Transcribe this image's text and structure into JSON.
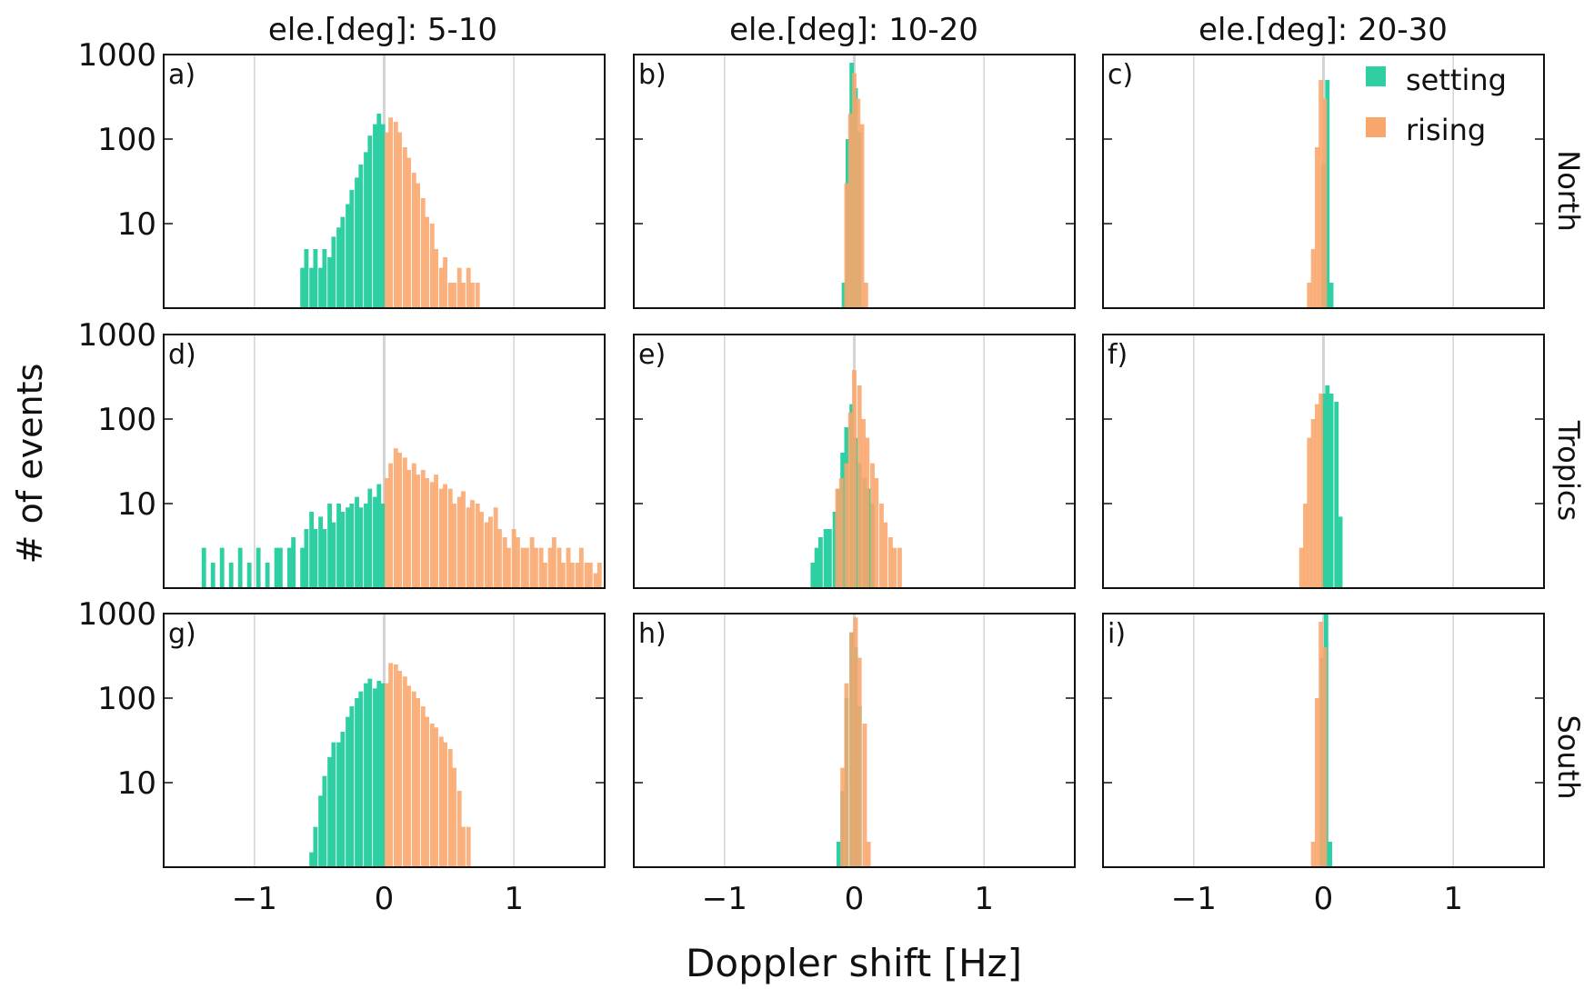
{
  "figure": {
    "ylabel": "# of events",
    "xlabel": "Doppler shift [Hz]",
    "col_titles": [
      "ele.[deg]: 5-10",
      "ele.[deg]: 10-20",
      "ele.[deg]: 20-30"
    ],
    "row_titles": [
      "North",
      "Tropics",
      "South"
    ],
    "legend": [
      {
        "label": "setting",
        "color": "#2ecfa2"
      },
      {
        "label": "rising",
        "color": "#f9a66c"
      }
    ],
    "xticks": [
      "−1",
      "0",
      "1"
    ],
    "yticks": [
      "10",
      "100",
      "1000"
    ]
  },
  "chart_data": {
    "type": "bar",
    "yscale": "log",
    "xlim": [
      -1.7,
      1.7
    ],
    "ylim": [
      1,
      1000
    ],
    "bin_width": 0.034,
    "grid": "vertical",
    "legend_position": "top-right of panel c",
    "panels": [
      {
        "label": "a)",
        "row": 0,
        "col": 0,
        "series": [
          {
            "name": "setting",
            "color": "#2ecfa2",
            "x": [
              -0.63,
              -0.6,
              -0.56,
              -0.53,
              -0.49,
              -0.46,
              -0.42,
              -0.39,
              -0.35,
              -0.32,
              -0.28,
              -0.25,
              -0.21,
              -0.18,
              -0.14,
              -0.11,
              -0.07,
              -0.04,
              -0.01
            ],
            "values": [
              3,
              5,
              3,
              5,
              3,
              5,
              4,
              7,
              9,
              12,
              17,
              25,
              35,
              50,
              70,
              110,
              150,
              200,
              150
            ]
          },
          {
            "name": "rising",
            "color": "#f9a66c",
            "x": [
              0.02,
              0.05,
              0.09,
              0.12,
              0.16,
              0.19,
              0.23,
              0.26,
              0.3,
              0.33,
              0.37,
              0.4,
              0.44,
              0.47,
              0.51,
              0.54,
              0.58,
              0.61,
              0.65,
              0.68,
              0.72
            ],
            "values": [
              120,
              180,
              160,
              120,
              80,
              60,
              40,
              30,
              20,
              12,
              10,
              5,
              3,
              4,
              2,
              2,
              3,
              2,
              3,
              2,
              2
            ]
          }
        ]
      },
      {
        "label": "b)",
        "row": 0,
        "col": 1,
        "series": [
          {
            "name": "setting",
            "color": "#2ecfa2",
            "x": [
              -0.08,
              -0.05,
              -0.02,
              0.01,
              0.04
            ],
            "values": [
              2,
              100,
              800,
              400,
              120
            ]
          },
          {
            "name": "rising",
            "color": "#f9a66c",
            "x": [
              -0.06,
              -0.03,
              0.0,
              0.03,
              0.06,
              0.09
            ],
            "values": [
              30,
              200,
              600,
              300,
              150,
              2
            ]
          }
        ]
      },
      {
        "label": "c)",
        "row": 0,
        "col": 2,
        "series": [
          {
            "name": "setting",
            "color": "#2ecfa2",
            "x": [
              0.0,
              0.03,
              0.06
            ],
            "values": [
              50,
              500,
              2
            ]
          },
          {
            "name": "rising",
            "color": "#f9a66c",
            "x": [
              -0.11,
              -0.08,
              -0.05,
              -0.02,
              0.01
            ],
            "values": [
              2,
              5,
              80,
              500,
              300
            ]
          }
        ]
      },
      {
        "label": "d)",
        "row": 1,
        "col": 0,
        "series": [
          {
            "name": "setting",
            "color": "#2ecfa2",
            "x": [
              -1.39,
              -1.32,
              -1.25,
              -1.18,
              -1.11,
              -1.04,
              -0.97,
              -0.9,
              -0.83,
              -0.8,
              -0.73,
              -0.7,
              -0.63,
              -0.6,
              -0.56,
              -0.53,
              -0.49,
              -0.46,
              -0.42,
              -0.39,
              -0.35,
              -0.32,
              -0.28,
              -0.25,
              -0.21,
              -0.18,
              -0.14,
              -0.11,
              -0.07,
              -0.04,
              -0.01
            ],
            "values": [
              3,
              2,
              3,
              2,
              3,
              2,
              3,
              2,
              3,
              3,
              3,
              4,
              3,
              5,
              8,
              5,
              7,
              5,
              10,
              6,
              10,
              8,
              9,
              10,
              12,
              9,
              10,
              15,
              12,
              17,
              10
            ]
          },
          {
            "name": "rising",
            "color": "#f9a66c",
            "x": [
              0.02,
              0.05,
              0.09,
              0.12,
              0.16,
              0.19,
              0.23,
              0.26,
              0.3,
              0.33,
              0.37,
              0.4,
              0.44,
              0.47,
              0.51,
              0.54,
              0.58,
              0.61,
              0.65,
              0.68,
              0.72,
              0.75,
              0.79,
              0.82,
              0.86,
              0.89,
              0.93,
              0.96,
              1.0,
              1.03,
              1.07,
              1.1,
              1.14,
              1.17,
              1.21,
              1.24,
              1.28,
              1.31,
              1.35,
              1.38,
              1.42,
              1.45,
              1.49,
              1.52,
              1.56,
              1.59,
              1.63,
              1.66
            ],
            "values": [
              20,
              30,
              45,
              40,
              35,
              25,
              30,
              22,
              25,
              20,
              18,
              22,
              15,
              17,
              15,
              10,
              12,
              14,
              9,
              11,
              10,
              8,
              6,
              7,
              9,
              5,
              4,
              3,
              5,
              4,
              3,
              3,
              4,
              3,
              3,
              2,
              3,
              4,
              3,
              2,
              3,
              2,
              2,
              3,
              2,
              2,
              1.5,
              2
            ]
          }
        ]
      },
      {
        "label": "e)",
        "row": 1,
        "col": 1,
        "series": [
          {
            "name": "setting",
            "color": "#2ecfa2",
            "x": [
              -0.32,
              -0.29,
              -0.26,
              -0.22,
              -0.19,
              -0.15,
              -0.12,
              -0.09,
              -0.06,
              -0.02,
              0.01,
              0.04,
              0.08,
              0.11,
              0.14
            ],
            "values": [
              2,
              3,
              4,
              5,
              5,
              8,
              15,
              40,
              80,
              150,
              60,
              30,
              20,
              15,
              10
            ]
          },
          {
            "name": "rising",
            "color": "#f9a66c",
            "x": [
              -0.13,
              -0.1,
              -0.06,
              -0.03,
              0.0,
              0.04,
              0.07,
              0.1,
              0.14,
              0.17,
              0.21,
              0.24,
              0.28,
              0.31,
              0.35
            ],
            "values": [
              15,
              20,
              30,
              120,
              380,
              250,
              100,
              60,
              30,
              20,
              10,
              6,
              4,
              3,
              3
            ]
          }
        ]
      },
      {
        "label": "f)",
        "row": 1,
        "col": 2,
        "series": [
          {
            "name": "setting",
            "color": "#2ecfa2",
            "x": [
              0.0,
              0.03,
              0.06,
              0.1,
              0.13
            ],
            "values": [
              200,
              250,
              200,
              160,
              7
            ]
          },
          {
            "name": "rising",
            "color": "#f9a66c",
            "x": [
              -0.17,
              -0.14,
              -0.11,
              -0.08,
              -0.05,
              -0.02
            ],
            "values": [
              3,
              10,
              60,
              100,
              150,
              200
            ]
          }
        ]
      },
      {
        "label": "g)",
        "row": 2,
        "col": 0,
        "series": [
          {
            "name": "setting",
            "color": "#2ecfa2",
            "x": [
              -0.56,
              -0.53,
              -0.49,
              -0.46,
              -0.42,
              -0.39,
              -0.35,
              -0.32,
              -0.28,
              -0.25,
              -0.21,
              -0.18,
              -0.14,
              -0.11,
              -0.07,
              -0.04,
              -0.01
            ],
            "values": [
              1.5,
              3,
              7,
              12,
              20,
              30,
              30,
              40,
              60,
              80,
              100,
              120,
              150,
              170,
              130,
              160,
              150
            ]
          },
          {
            "name": "rising",
            "color": "#f9a66c",
            "x": [
              0.02,
              0.05,
              0.09,
              0.12,
              0.16,
              0.19,
              0.23,
              0.26,
              0.3,
              0.33,
              0.37,
              0.4,
              0.44,
              0.47,
              0.51,
              0.54,
              0.58,
              0.61,
              0.65
            ],
            "values": [
              150,
              260,
              250,
              210,
              180,
              140,
              120,
              100,
              80,
              60,
              50,
              45,
              35,
              30,
              25,
              15,
              8,
              3,
              3
            ]
          }
        ]
      },
      {
        "label": "h)",
        "row": 2,
        "col": 1,
        "series": [
          {
            "name": "setting",
            "color": "#2ecfa2",
            "x": [
              -0.12,
              -0.09,
              -0.06,
              -0.02,
              0.01,
              0.04
            ],
            "values": [
              2,
              8,
              100,
              600,
              400,
              80
            ]
          },
          {
            "name": "rising",
            "color": "#f9a66c",
            "x": [
              -0.09,
              -0.06,
              -0.02,
              0.01,
              0.04,
              0.08,
              0.11
            ],
            "values": [
              15,
              150,
              600,
              900,
              300,
              50,
              2
            ]
          }
        ]
      },
      {
        "label": "i)",
        "row": 2,
        "col": 2,
        "series": [
          {
            "name": "setting",
            "color": "#2ecfa2",
            "x": [
              -0.01,
              0.02,
              0.05
            ],
            "values": [
              300,
              1000,
              2
            ]
          },
          {
            "name": "rising",
            "color": "#f9a66c",
            "x": [
              -0.08,
              -0.05,
              -0.02,
              0.01
            ],
            "values": [
              2,
              100,
              800,
              400
            ]
          }
        ]
      }
    ]
  }
}
